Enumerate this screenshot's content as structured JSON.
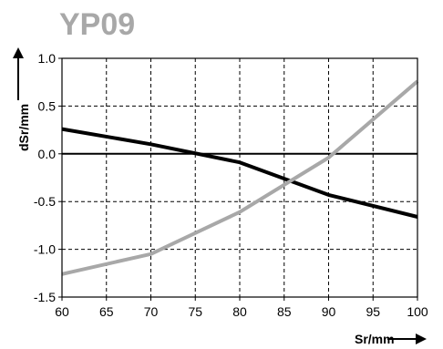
{
  "chart_data": {
    "type": "line",
    "title": "YP09",
    "xlabel": "Sr/mm",
    "ylabel": "dSr/mm",
    "xlim": [
      60,
      100
    ],
    "ylim": [
      -1.5,
      1.0
    ],
    "xticks": [
      60,
      65,
      70,
      75,
      80,
      85,
      90,
      95,
      100
    ],
    "yticks": [
      1.0,
      0.5,
      0.0,
      -0.5,
      -1.0,
      -1.5
    ],
    "xtick_labels": [
      "60",
      "65",
      "70",
      "75",
      "80",
      "85",
      "90",
      "95",
      "100"
    ],
    "ytick_labels": [
      "1.0",
      "0.5",
      "0.0",
      "-0.5",
      "-1.0",
      "-1.5"
    ],
    "grid": true,
    "grid_style": "dashed",
    "zero_line": true,
    "series": [
      {
        "color": "#000000",
        "x": [
          60,
          70,
          80,
          90,
          100
        ],
        "y": [
          0.26,
          0.1,
          -0.09,
          -0.43,
          -0.66
        ]
      },
      {
        "color": "#a8a8a8",
        "x": [
          60,
          70,
          80,
          90,
          100
        ],
        "y": [
          -1.26,
          -1.05,
          -0.61,
          -0.04,
          0.76
        ]
      }
    ]
  }
}
